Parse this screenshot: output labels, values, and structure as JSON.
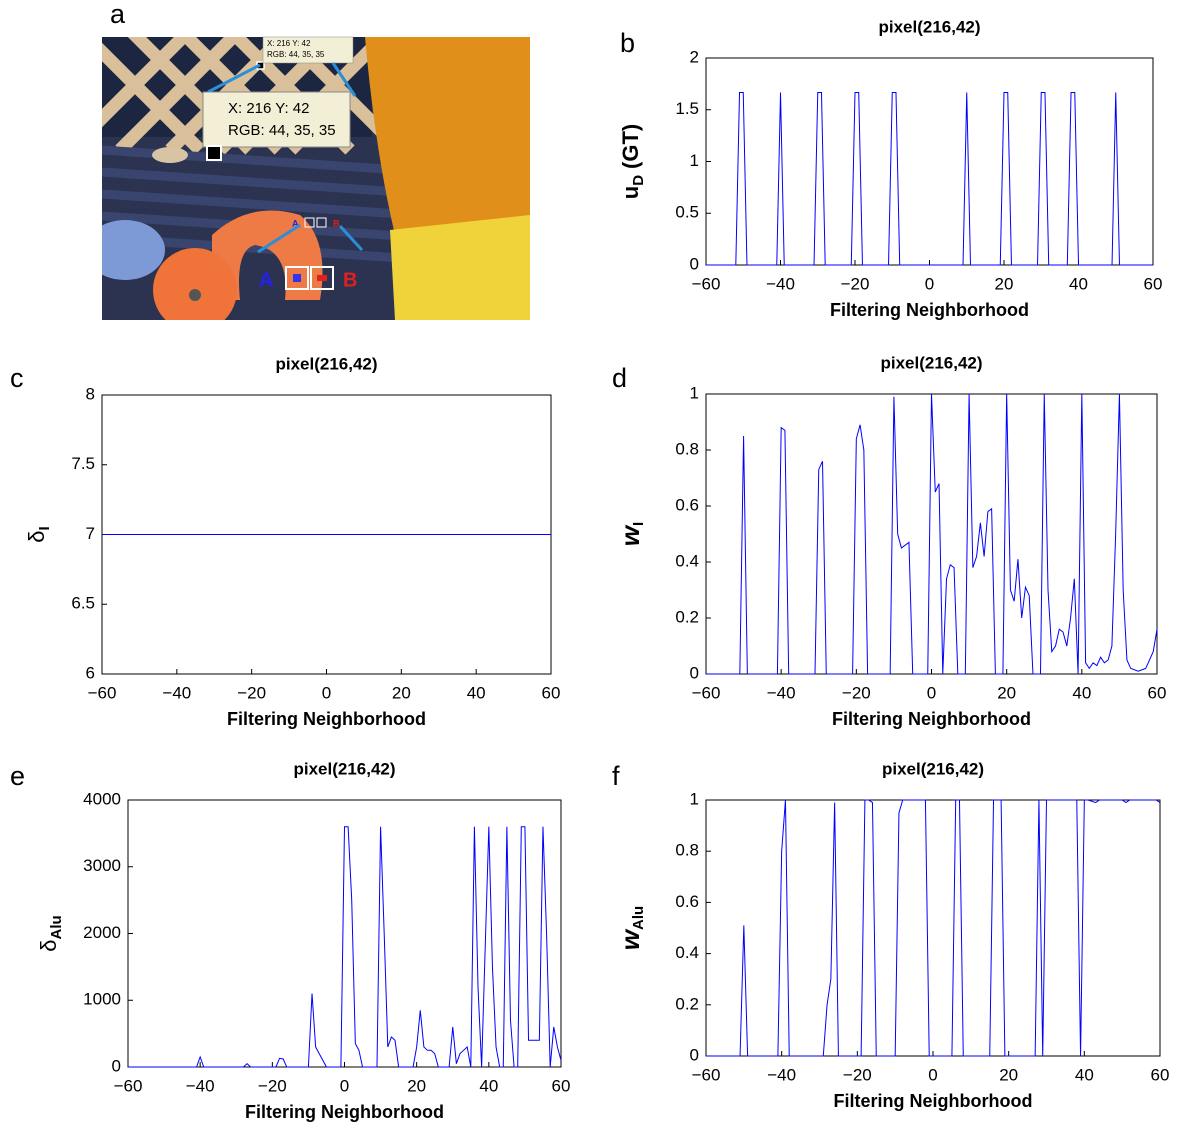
{
  "image_panel": {
    "label": "a",
    "callout_lines": [
      "X: 216 Y: 42",
      "RGB: 44, 35, 35"
    ],
    "tooltip_lines": [
      "X: 216 Y: 42",
      "RGB: 44, 35, 35"
    ],
    "markers": [
      "A",
      "B"
    ],
    "small_markers": [
      "A",
      "B"
    ]
  },
  "chart_data": [
    {
      "type": "line",
      "panel": "b",
      "title": "pixel(216,42)",
      "xlabel": "Filtering Neighborhood",
      "ylabel": {
        "main": "u",
        "sub": "D",
        "rest": "(GT)"
      },
      "color": "#0000ff",
      "xlim": [
        -60,
        60
      ],
      "xticks": [
        {
          "value": -60,
          "label": "−60"
        },
        {
          "value": -40,
          "label": "−40"
        },
        {
          "value": -20,
          "label": "−20"
        },
        0,
        20,
        40,
        60
      ],
      "ylim": [
        0,
        2
      ],
      "yticks": [
        0,
        0.5,
        1,
        1.5,
        2
      ],
      "x": [
        -60,
        -52,
        -51,
        -50,
        -49,
        -41,
        -40,
        -39,
        -31,
        -30,
        -29,
        -28,
        -21,
        -20,
        -19,
        -18,
        -11,
        -10,
        -9,
        -8,
        9,
        10,
        11,
        19,
        20,
        21,
        22,
        29,
        30,
        31,
        32,
        37,
        38,
        39,
        40,
        49,
        50,
        51,
        60
      ],
      "values": [
        0,
        0,
        1.667,
        1.667,
        0,
        0,
        1.667,
        0,
        0,
        1.667,
        1.667,
        0,
        0,
        1.667,
        1.667,
        0,
        0,
        1.667,
        1.667,
        0,
        0,
        1.667,
        0,
        0,
        1.667,
        1.667,
        0,
        0,
        1.667,
        1.667,
        0,
        0,
        1.667,
        1.667,
        0,
        0,
        1.667,
        0,
        0
      ]
    },
    {
      "type": "line",
      "panel": "c",
      "title": "pixel(216,42)",
      "xlabel": "Filtering Neighborhood",
      "ylabel": {
        "main": "δ",
        "sub": "I"
      },
      "color": "#0000ff",
      "xlim": [
        -60,
        60
      ],
      "xticks": [
        {
          "value": -60,
          "label": "−60"
        },
        {
          "value": -40,
          "label": "−40"
        },
        {
          "value": -20,
          "label": "−20"
        },
        0,
        20,
        40,
        60
      ],
      "ylim": [
        6,
        8
      ],
      "yticks": [
        6,
        6.5,
        7,
        7.5,
        8
      ],
      "x": [
        -60,
        60
      ],
      "values": [
        7,
        7
      ]
    },
    {
      "type": "line",
      "panel": "d",
      "title": "pixel(216,42)",
      "xlabel": "Filtering Neighborhood",
      "ylabel": {
        "main": "w",
        "sub": "I"
      },
      "color": "#0000ff",
      "xlim": [
        -60,
        60
      ],
      "xticks": [
        {
          "value": -60,
          "label": "−60"
        },
        {
          "value": -40,
          "label": "−40"
        },
        {
          "value": -20,
          "label": "−20"
        },
        0,
        20,
        40,
        60
      ],
      "ylim": [
        0,
        1
      ],
      "yticks": [
        0,
        0.2,
        0.4,
        0.6,
        0.8,
        1
      ],
      "x": [
        -60,
        -51,
        -50,
        -49,
        -41,
        -40,
        -39,
        -38,
        -31,
        -30,
        -29,
        -28,
        -21,
        -20,
        -19,
        -18,
        -17,
        -11,
        -10,
        -9,
        -8,
        -7,
        -6,
        -5,
        -1,
        0,
        1,
        2,
        3,
        4,
        5,
        6,
        7,
        9,
        10,
        11,
        12,
        13,
        14,
        15,
        16,
        17,
        19,
        20,
        21,
        22,
        23,
        24,
        25,
        26,
        27,
        29,
        30,
        31,
        32,
        33,
        34,
        35,
        36,
        37,
        38,
        39,
        40,
        41,
        42,
        43,
        44,
        45,
        46,
        47,
        48,
        49,
        50,
        51,
        52,
        53,
        55,
        57,
        59,
        60
      ],
      "values": [
        0,
        0,
        0.85,
        0,
        0,
        0.88,
        0.87,
        0,
        0,
        0.73,
        0.76,
        0,
        0,
        0.84,
        0.89,
        0.8,
        0,
        0,
        0.99,
        0.5,
        0.45,
        0.46,
        0.47,
        0,
        0,
        1,
        0.65,
        0.68,
        0,
        0.34,
        0.39,
        0.38,
        0,
        0,
        1,
        0.38,
        0.42,
        0.54,
        0.42,
        0.58,
        0.59,
        0,
        0,
        1,
        0.3,
        0.26,
        0.41,
        0.2,
        0.31,
        0.28,
        0,
        0,
        1,
        0.3,
        0.08,
        0.1,
        0.16,
        0.15,
        0.1,
        0.2,
        0.34,
        0,
        1,
        0.04,
        0.02,
        0.04,
        0.03,
        0.06,
        0.04,
        0.05,
        0.1,
        0.5,
        1,
        0.3,
        0.05,
        0.02,
        0.01,
        0.02,
        0.08,
        0.16
      ]
    },
    {
      "type": "line",
      "panel": "e",
      "title": "pixel(216,42)",
      "xlabel": "Filtering Neighborhood",
      "ylabel": {
        "main": "δ",
        "sub": "Alu"
      },
      "color": "#0000ff",
      "xlim": [
        -60,
        60
      ],
      "xticks": [
        {
          "value": -60,
          "label": "−60"
        },
        {
          "value": -40,
          "label": "−40"
        },
        {
          "value": -20,
          "label": "−20"
        },
        0,
        20,
        40,
        60
      ],
      "ylim": [
        0,
        4000
      ],
      "yticks": [
        0,
        1000,
        2000,
        3000,
        4000
      ],
      "x": [
        -60,
        -41,
        -40,
        -39,
        -28,
        -27,
        -26,
        -19,
        -18,
        -17,
        -16,
        -10,
        -9,
        -8,
        -6,
        -5,
        -1,
        0,
        1,
        2,
        3,
        4,
        5,
        9,
        10,
        11,
        12,
        13,
        14,
        15,
        19,
        20,
        21,
        22,
        23,
        24,
        25,
        26,
        29,
        30,
        31,
        32,
        33,
        34,
        35,
        36,
        37,
        38,
        40,
        41,
        42,
        43,
        44,
        45,
        46,
        47,
        48,
        49,
        50,
        51,
        53,
        54,
        55,
        56,
        57,
        58,
        59,
        60
      ],
      "values": [
        0,
        0,
        150,
        0,
        0,
        50,
        0,
        0,
        130,
        120,
        0,
        0,
        1100,
        300,
        100,
        0,
        0,
        3600,
        3600,
        2500,
        350,
        250,
        0,
        0,
        3600,
        2000,
        300,
        450,
        400,
        0,
        0,
        300,
        850,
        300,
        250,
        250,
        200,
        0,
        0,
        600,
        50,
        200,
        250,
        300,
        0,
        3600,
        1200,
        0,
        3600,
        1500,
        300,
        0,
        0,
        3600,
        700,
        0,
        0,
        3600,
        3600,
        400,
        400,
        400,
        3600,
        2000,
        0,
        600,
        300,
        100
      ]
    },
    {
      "type": "line",
      "panel": "f",
      "title": "pixel(216,42)",
      "xlabel": "Filtering Neighborhood",
      "ylabel": {
        "main": "w",
        "sub": "Alu"
      },
      "color": "#0000ff",
      "xlim": [
        -60,
        60
      ],
      "xticks": [
        {
          "value": -60,
          "label": "−60"
        },
        {
          "value": -40,
          "label": "−40"
        },
        {
          "value": -20,
          "label": "−20"
        },
        0,
        20,
        40,
        60
      ],
      "ylim": [
        0,
        1
      ],
      "yticks": [
        0,
        0.2,
        0.4,
        0.6,
        0.8,
        1
      ],
      "x": [
        -60,
        -51,
        -50,
        -49,
        -41,
        -40,
        -39,
        -38,
        -29,
        -28,
        -27,
        -26,
        -25,
        -19,
        -18,
        -17,
        -16,
        -15,
        -10,
        -9,
        -8,
        -7,
        -2,
        -1,
        5,
        6,
        7,
        8,
        15,
        16,
        18,
        19,
        27,
        28,
        29,
        30,
        38,
        39,
        40,
        41,
        43,
        44,
        50,
        51,
        52,
        59,
        60
      ],
      "values": [
        0,
        0,
        0.51,
        0,
        0,
        0.8,
        1,
        0,
        0,
        0.2,
        0.3,
        0.99,
        0,
        0,
        1,
        1,
        0.99,
        0,
        0,
        0.95,
        1,
        1,
        1,
        0,
        0,
        1,
        1,
        0,
        0,
        1,
        1,
        0,
        0,
        1,
        0,
        1,
        1,
        0,
        1,
        1,
        0.99,
        1,
        1,
        0.99,
        1,
        1,
        0.99
      ]
    }
  ]
}
